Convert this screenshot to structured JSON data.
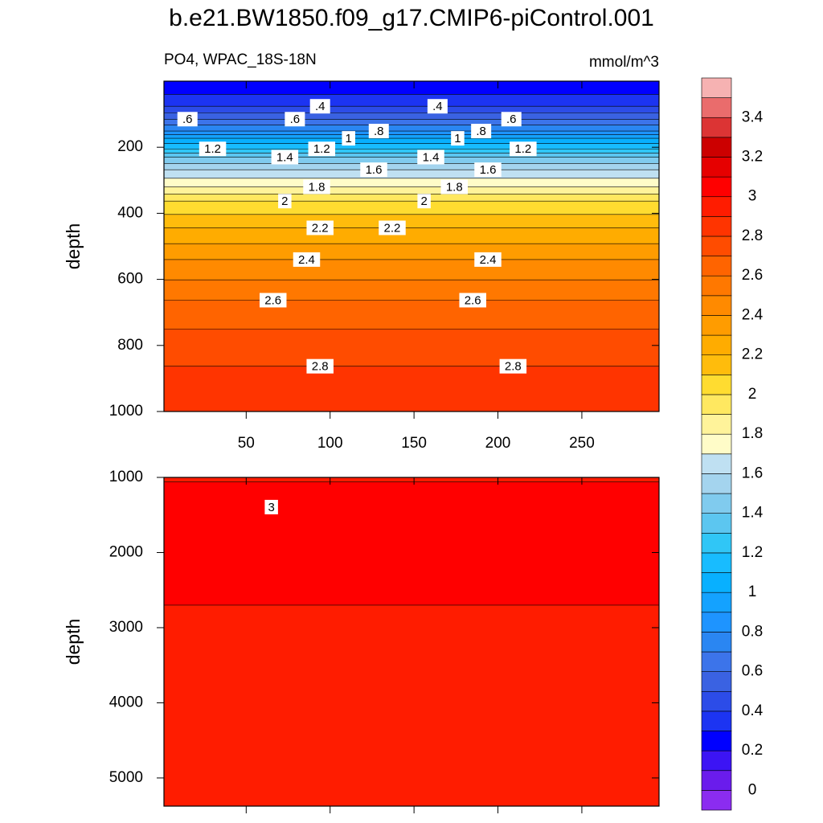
{
  "title": "b.e21.BW1850.f09_g17.CMIP6-piControl.001",
  "chart_data": [
    {
      "type": "contour",
      "subtitle_left": "PO4, WPAC_18S-18N",
      "subtitle_right": "mmol/m^3",
      "y_label": "depth",
      "xlim": [
        1,
        296
      ],
      "ylim": [
        0,
        1000
      ],
      "y_reversed": true,
      "xticks": [
        50,
        100,
        150,
        200,
        250
      ],
      "show_xtick_labels": true,
      "yticks": [
        200,
        400,
        600,
        800,
        1000
      ],
      "profile": {
        "depth": [
          0,
          40,
          76,
          115,
          151,
          173,
          205,
          230,
          268,
          320,
          363,
          444,
          540,
          663,
          750,
          863,
          1000
        ],
        "values": [
          0.22,
          0.3,
          0.4,
          0.6,
          0.8,
          1.0,
          1.2,
          1.4,
          1.6,
          1.8,
          2.0,
          2.2,
          2.4,
          2.6,
          2.7,
          2.8,
          2.88
        ]
      },
      "contour_labels": [
        {
          "value": 0.6,
          "label": ".6",
          "x": 15,
          "depth": 115
        },
        {
          "value": 0.6,
          "label": ".6",
          "x": 79,
          "depth": 115
        },
        {
          "value": 0.4,
          "label": ".4",
          "x": 94,
          "depth": 76
        },
        {
          "value": 0.4,
          "label": ".4",
          "x": 164,
          "depth": 76
        },
        {
          "value": 0.6,
          "label": ".6",
          "x": 208,
          "depth": 115
        },
        {
          "value": 0.8,
          "label": ".8",
          "x": 129,
          "depth": 151
        },
        {
          "value": 0.8,
          "label": ".8",
          "x": 190,
          "depth": 151
        },
        {
          "value": 1,
          "label": "1",
          "x": 111,
          "depth": 173
        },
        {
          "value": 1,
          "label": "1",
          "x": 176,
          "depth": 173
        },
        {
          "value": 1.2,
          "label": "1.2",
          "x": 30,
          "depth": 205
        },
        {
          "value": 1.2,
          "label": "1.2",
          "x": 95,
          "depth": 205
        },
        {
          "value": 1.2,
          "label": "1.2",
          "x": 215,
          "depth": 205
        },
        {
          "value": 1.4,
          "label": "1.4",
          "x": 73,
          "depth": 230
        },
        {
          "value": 1.4,
          "label": "1.4",
          "x": 160,
          "depth": 230
        },
        {
          "value": 1.6,
          "label": "1.6",
          "x": 126,
          "depth": 268
        },
        {
          "value": 1.6,
          "label": "1.6",
          "x": 194,
          "depth": 268
        },
        {
          "value": 1.8,
          "label": "1.8",
          "x": 92,
          "depth": 320
        },
        {
          "value": 1.8,
          "label": "1.8",
          "x": 174,
          "depth": 320
        },
        {
          "value": 2,
          "label": "2",
          "x": 73,
          "depth": 363
        },
        {
          "value": 2,
          "label": "2",
          "x": 156,
          "depth": 363
        },
        {
          "value": 2.2,
          "label": "2.2",
          "x": 94,
          "depth": 444
        },
        {
          "value": 2.2,
          "label": "2.2",
          "x": 137,
          "depth": 444
        },
        {
          "value": 2.4,
          "label": "2.4",
          "x": 86,
          "depth": 540
        },
        {
          "value": 2.4,
          "label": "2.4",
          "x": 194,
          "depth": 540
        },
        {
          "value": 2.6,
          "label": "2.6",
          "x": 66,
          "depth": 663
        },
        {
          "value": 2.6,
          "label": "2.6",
          "x": 185,
          "depth": 663
        },
        {
          "value": 2.8,
          "label": "2.8",
          "x": 94,
          "depth": 863
        },
        {
          "value": 2.8,
          "label": "2.8",
          "x": 209,
          "depth": 863
        }
      ]
    },
    {
      "type": "contour",
      "y_label": "depth",
      "xlim": [
        1,
        296
      ],
      "ylim": [
        1000,
        5375
      ],
      "y_reversed": true,
      "xticks": [
        50,
        100,
        150,
        200,
        250
      ],
      "show_xtick_labels": false,
      "yticks": [
        1000,
        2000,
        3000,
        4000,
        5000
      ],
      "profile": {
        "depth": [
          1000,
          1060,
          1500,
          2000,
          2700,
          3500,
          4500,
          5375
        ],
        "values": [
          2.97,
          3.0,
          3.04,
          3.03,
          3.0,
          2.97,
          2.96,
          2.95
        ]
      },
      "contour_labels": [
        {
          "value": 3,
          "label": "3",
          "x": 65,
          "depth": 1395
        }
      ]
    }
  ],
  "colorbar": {
    "levels": [
      0,
      0.1,
      0.2,
      0.3,
      0.4,
      0.5,
      0.6,
      0.7,
      0.8,
      0.9,
      1.0,
      1.1,
      1.2,
      1.3,
      1.4,
      1.5,
      1.6,
      1.7,
      1.8,
      1.9,
      2.0,
      2.1,
      2.2,
      2.3,
      2.4,
      2.5,
      2.6,
      2.7,
      2.8,
      2.9,
      3.0,
      3.1,
      3.2,
      3.3,
      3.4,
      3.5
    ],
    "colors": [
      "#8b2cf0",
      "#6a1cec",
      "#3c14f4",
      "#0000ff",
      "#1c34f2",
      "#2c4ce8",
      "#3a62e2",
      "#3c74ea",
      "#2a86f2",
      "#1e94ff",
      "#14a2ff",
      "#08b0ff",
      "#18bcff",
      "#30c6f6",
      "#5cc6f0",
      "#80cbee",
      "#a4d4ee",
      "#bfe0f2",
      "#fffcc8",
      "#fff39a",
      "#ffe860",
      "#ffdc30",
      "#ffbc0c",
      "#ffac00",
      "#ff9c00",
      "#ff8a00",
      "#ff7800",
      "#ff6400",
      "#ff4c00",
      "#ff3400",
      "#ff1c00",
      "#ff0000",
      "#e60000",
      "#cc0000",
      "#dc3434",
      "#ea6c6c",
      "#f6b2b2"
    ],
    "ticks": [
      0,
      0.2,
      0.4,
      0.6,
      0.8,
      1,
      1.2,
      1.4,
      1.6,
      1.8,
      2,
      2.2,
      2.4,
      2.6,
      2.8,
      3,
      3.2,
      3.4
    ]
  }
}
